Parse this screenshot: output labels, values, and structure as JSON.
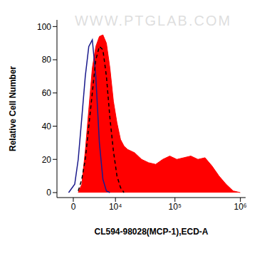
{
  "chart_data": {
    "type": "line",
    "annotations": [
      "WWW.PTGLAB.COM"
    ],
    "x_label": "CL594-98028(MCP-1),ECD-A",
    "y_label": "Relative Cell Number",
    "xlim": [
      -2300,
      1200000
    ],
    "xticks": [
      0,
      {
        "value": 10000,
        "label": "10⁴"
      },
      {
        "value": 100000,
        "label": "10⁵"
      },
      {
        "value": 1000000,
        "label": "10⁶"
      }
    ],
    "ylim": [
      -3,
      104
    ],
    "yticks": [
      0,
      20,
      40,
      60,
      80,
      100
    ],
    "grid": false,
    "series": [
      {
        "type": "area",
        "color": "#ff0000",
        "line_style": "solid",
        "x": [
          560,
          1030,
          1550,
          2140,
          2810,
          3560,
          4430,
          5400,
          6490,
          7720,
          9110,
          10700,
          12500,
          14500,
          16800,
          22300,
          29300,
          38200,
          49700,
          64300,
          83000,
          107000,
          137000,
          176000,
          226000,
          290000,
          371000,
          474000,
          608000,
          777000,
          994000
        ],
        "values": [
          0,
          5,
          25,
          50,
          75,
          88,
          94,
          95,
          90,
          75,
          55,
          42,
          32,
          28,
          26,
          24,
          20,
          18,
          17,
          20,
          22,
          20,
          21,
          22,
          20,
          21,
          16,
          10,
          5,
          1,
          0
        ]
      },
      {
        "type": "line",
        "color": "#1a1a8c",
        "line_style": "solid",
        "x": [
          -530,
          150,
          560,
          1030,
          1550,
          2140,
          2810,
          3560,
          4430,
          5400,
          6490,
          7720
        ],
        "values": [
          0,
          5,
          20,
          45,
          70,
          88,
          92,
          70,
          30,
          8,
          1,
          0
        ]
      },
      {
        "type": "line",
        "color": "#000000",
        "line_style": "dashed",
        "x": [
          560,
          1030,
          1550,
          2140,
          2810,
          3560,
          4430,
          5400,
          6490,
          7720,
          9110,
          10700,
          12500,
          14500
        ],
        "values": [
          1,
          8,
          20,
          40,
          60,
          80,
          88,
          86,
          70,
          45,
          25,
          10,
          3,
          0
        ]
      }
    ]
  }
}
